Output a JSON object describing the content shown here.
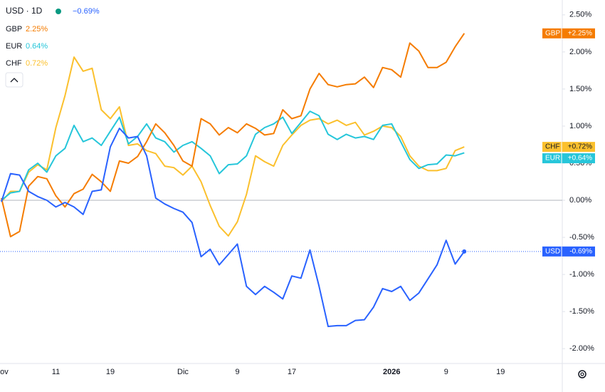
{
  "chart_data": {
    "type": "line",
    "title": "USD · 1D",
    "title_value": "−0.69%",
    "categories": [
      "Nov",
      null,
      null,
      null,
      null,
      null,
      "11",
      null,
      null,
      null,
      null,
      null,
      "19",
      null,
      null,
      null,
      null,
      null,
      null,
      null,
      "Dic",
      null,
      null,
      null,
      null,
      null,
      "9",
      null,
      null,
      null,
      null,
      null,
      "17",
      null,
      null,
      null,
      null,
      null,
      null,
      null,
      null,
      null,
      null,
      "2026",
      null,
      null,
      null,
      null,
      null,
      "9",
      null,
      null,
      null,
      null,
      null,
      "19",
      null,
      null,
      null,
      null,
      null,
      null
    ],
    "series": [
      {
        "name": "USD",
        "color": "#2962ff",
        "last_label": "-0.69%",
        "values": [
          -0.02,
          0.36,
          0.34,
          0.12,
          0.05,
          0.0,
          -0.09,
          -0.03,
          -0.09,
          -0.19,
          0.12,
          0.14,
          0.72,
          0.97,
          0.84,
          0.86,
          0.6,
          0.03,
          -0.05,
          -0.11,
          -0.16,
          -0.3,
          -0.76,
          -0.66,
          -0.87,
          -0.73,
          -0.59,
          -1.16,
          -1.27,
          -1.16,
          -1.24,
          -1.33,
          -1.02,
          -1.05,
          -0.67,
          -1.16,
          -1.7,
          -1.69,
          -1.69,
          -1.62,
          -1.61,
          -1.44,
          -1.19,
          -1.23,
          -1.16,
          -1.35,
          -1.25,
          -1.06,
          -0.87,
          -0.54,
          -0.86,
          -0.69,
          null,
          null,
          null,
          null,
          null,
          null,
          null,
          null,
          null,
          null
        ]
      },
      {
        "name": "GBP",
        "color": "#f57c00",
        "legend_value": "2.25%",
        "last_label": "+2.25%",
        "values": [
          0.03,
          -0.49,
          -0.42,
          0.19,
          0.32,
          0.29,
          0.06,
          -0.09,
          0.09,
          0.15,
          0.35,
          0.25,
          0.12,
          0.53,
          0.5,
          0.59,
          0.79,
          1.03,
          0.91,
          0.74,
          0.53,
          0.46,
          1.1,
          1.03,
          0.88,
          0.98,
          0.91,
          1.03,
          0.97,
          0.88,
          0.9,
          1.22,
          1.1,
          1.14,
          1.5,
          1.71,
          1.56,
          1.53,
          1.56,
          1.57,
          1.66,
          1.52,
          1.79,
          1.76,
          1.66,
          2.12,
          2.01,
          1.79,
          1.79,
          1.86,
          2.07,
          2.25,
          null,
          null,
          null,
          null,
          null,
          null,
          null,
          null,
          null,
          null
        ]
      },
      {
        "name": "EUR",
        "color": "#26c6da",
        "legend_value": "0.64%",
        "last_label": "+0.64%",
        "values": [
          0.0,
          0.1,
          0.12,
          0.41,
          0.5,
          0.38,
          0.6,
          0.7,
          1.01,
          0.79,
          0.84,
          0.74,
          0.93,
          1.12,
          0.76,
          0.86,
          1.03,
          0.84,
          0.79,
          0.65,
          0.74,
          0.79,
          0.7,
          0.6,
          0.36,
          0.48,
          0.49,
          0.6,
          0.89,
          0.98,
          1.03,
          1.12,
          0.9,
          1.05,
          1.2,
          1.14,
          0.89,
          0.82,
          0.89,
          0.84,
          0.86,
          0.82,
          1.01,
          1.03,
          0.79,
          0.55,
          0.43,
          0.48,
          0.49,
          0.61,
          0.6,
          0.64,
          null,
          null,
          null,
          null,
          null,
          null,
          null,
          null,
          null,
          null
        ]
      },
      {
        "name": "CHF",
        "color": "#fbc02d",
        "legend_value": "0.72%",
        "last_label": "+0.72%",
        "values": [
          -0.02,
          0.12,
          0.12,
          0.38,
          0.48,
          0.41,
          0.98,
          1.41,
          1.93,
          1.74,
          1.78,
          1.22,
          1.1,
          1.26,
          0.74,
          0.76,
          0.67,
          0.63,
          0.46,
          0.44,
          0.34,
          0.46,
          0.25,
          -0.07,
          -0.35,
          -0.48,
          -0.29,
          0.08,
          0.6,
          0.52,
          0.46,
          0.74,
          0.88,
          1.01,
          1.08,
          1.1,
          1.03,
          1.08,
          1.01,
          1.05,
          0.88,
          0.93,
          1.0,
          0.98,
          0.86,
          0.6,
          0.46,
          0.4,
          0.4,
          0.43,
          0.67,
          0.72,
          null,
          null,
          null,
          null,
          null,
          null,
          null,
          null,
          null,
          null
        ]
      }
    ],
    "ylim": [
      -2.2,
      2.7
    ],
    "yticks": [
      {
        "value": 2.5,
        "label": "2.50%"
      },
      {
        "value": 2,
        "label": "2.00%"
      },
      {
        "value": 1.5,
        "label": "1.50%"
      },
      {
        "value": 1,
        "label": "1.00%"
      },
      {
        "value": 0.5,
        "label": "0.50%"
      },
      {
        "value": 0,
        "label": "0.00%"
      },
      {
        "value": -0.5,
        "label": "-0.50%"
      },
      {
        "value": -1,
        "label": "-1.00%"
      },
      {
        "value": -1.5,
        "label": "-1.50%"
      },
      {
        "value": -2,
        "label": "-2.00%"
      }
    ]
  }
}
